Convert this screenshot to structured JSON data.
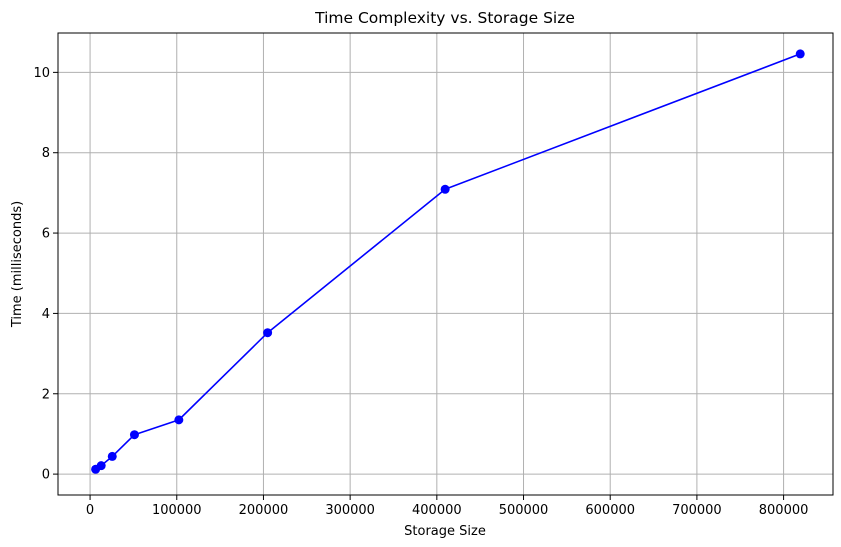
{
  "chart_data": {
    "type": "line",
    "title": "Time Complexity vs. Storage Size",
    "xlabel": "Storage Size",
    "ylabel": "Time (milliseconds)",
    "xlim": [
      -37000,
      857000
    ],
    "ylim": [
      -0.52,
      10.98
    ],
    "xticks": [
      0,
      100000,
      200000,
      300000,
      400000,
      500000,
      600000,
      700000,
      800000
    ],
    "xtick_labels": [
      "0",
      "100000",
      "200000",
      "300000",
      "400000",
      "500000",
      "600000",
      "700000",
      "800000"
    ],
    "yticks": [
      0,
      2,
      4,
      6,
      8,
      10
    ],
    "ytick_labels": [
      "0",
      "2",
      "4",
      "6",
      "8",
      "10"
    ],
    "grid": true,
    "series": [
      {
        "color": "#0000ff",
        "marker": "circle",
        "x": [
          6400,
          12800,
          25600,
          51200,
          102400,
          204800,
          409600,
          819200
        ],
        "y": [
          0.12,
          0.21,
          0.44,
          0.98,
          1.35,
          3.52,
          7.09,
          10.46
        ]
      }
    ]
  }
}
